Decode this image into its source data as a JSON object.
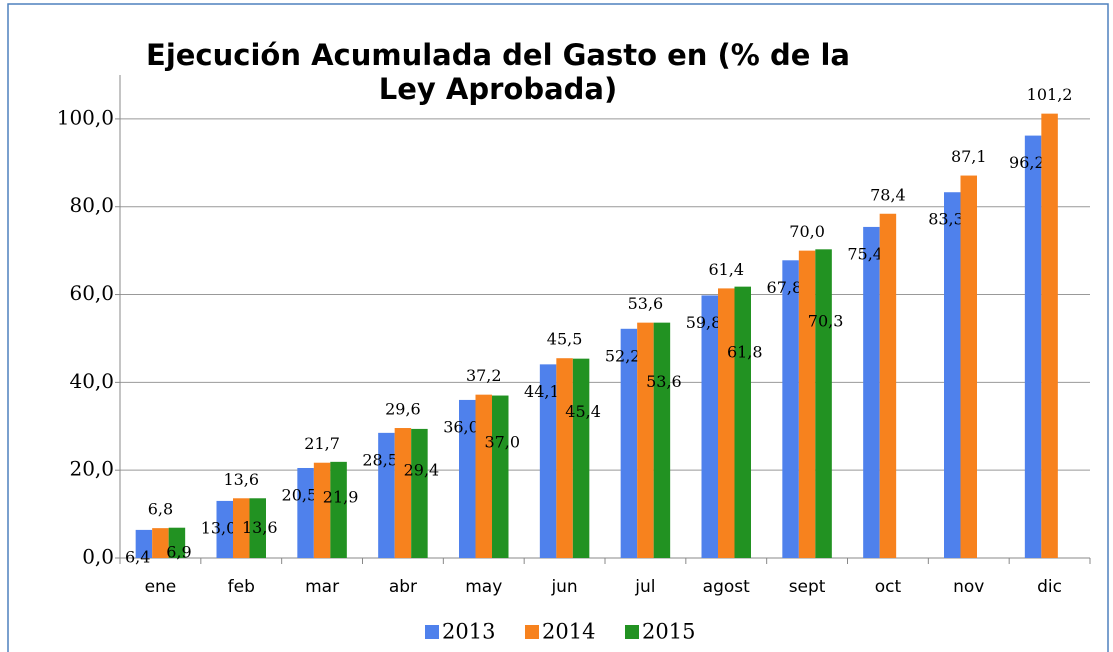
{
  "chart_data": {
    "type": "bar",
    "title": "Ejecución Acumulada del Gasto en (% de la Ley Aprobada)",
    "categories": [
      "ene",
      "feb",
      "mar",
      "abr",
      "may",
      "jun",
      "jul",
      "agost",
      "sept",
      "oct",
      "nov",
      "dic"
    ],
    "series": [
      {
        "name": "2013",
        "color": "#4f81ec",
        "values": [
          6.4,
          13.0,
          20.5,
          28.5,
          36.0,
          44.1,
          52.2,
          59.8,
          67.8,
          75.4,
          83.3,
          96.2
        ],
        "value_labels": [
          "6,4",
          "13,0",
          "20,5",
          "28,5",
          "36,0",
          "44,1",
          "52,2",
          "59,8",
          "67,8",
          "75,4",
          "83,3",
          "96,2"
        ]
      },
      {
        "name": "2014",
        "color": "#f7821e",
        "values": [
          6.8,
          13.6,
          21.7,
          29.6,
          37.2,
          45.5,
          53.6,
          61.4,
          70.0,
          78.4,
          87.1,
          101.2
        ],
        "value_labels": [
          "6,8",
          "13,6",
          "21,7",
          "29,6",
          "37,2",
          "45,5",
          "53,6",
          "61,4",
          "70,0",
          "78,4",
          "87,1",
          "101,2"
        ]
      },
      {
        "name": "2015",
        "color": "#229222",
        "values": [
          6.9,
          13.6,
          21.9,
          29.4,
          37.0,
          45.4,
          53.6,
          61.8,
          70.3,
          null,
          null,
          null
        ],
        "value_labels": [
          "6,9",
          "13,6",
          "21,9",
          "29,4",
          "37,0",
          "45,4",
          "53,6",
          "61,8",
          "70,3",
          null,
          null,
          null
        ]
      }
    ],
    "ylim": [
      0,
      110
    ],
    "yticks": [
      {
        "value": 0,
        "label": "0,0"
      },
      {
        "value": 20,
        "label": "20,0"
      },
      {
        "value": 40,
        "label": "40,0"
      },
      {
        "value": 60,
        "label": "60,0"
      },
      {
        "value": 80,
        "label": "80,0"
      },
      {
        "value": 100,
        "label": "100,0"
      }
    ],
    "grid": true,
    "legend": "bottom"
  }
}
